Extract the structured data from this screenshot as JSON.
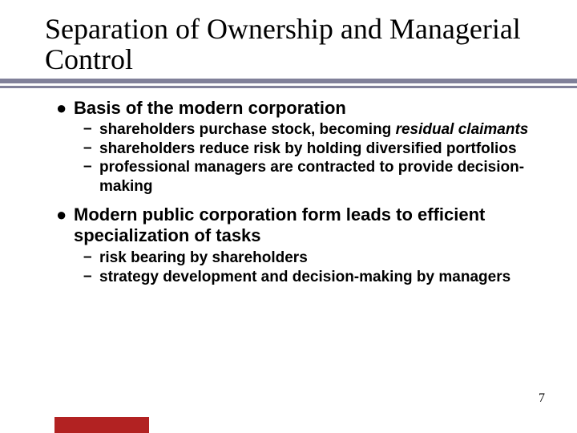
{
  "title_fontsize": 36,
  "bullet_fontsize": 22,
  "sub_fontsize": 19,
  "colors": {
    "underline": "#808099",
    "red_bar": "#b22222",
    "text": "#000000",
    "background": "#ffffff"
  },
  "title": "Separation of Ownership and Managerial Control",
  "page_number": "7",
  "bullets": [
    {
      "text": "Basis of the modern corporation",
      "subs": [
        {
          "prefix": "shareholders purchase stock, becoming ",
          "italic": "residual claimants"
        },
        {
          "prefix": "shareholders reduce risk by holding diversified portfolios",
          "italic": ""
        },
        {
          "prefix": "professional managers are contracted to provide decision-making",
          "italic": ""
        }
      ]
    },
    {
      "text": "Modern public corporation form leads to efficient specialization of tasks",
      "subs": [
        {
          "prefix": "risk bearing by shareholders",
          "italic": ""
        },
        {
          "prefix": "strategy development and decision-making by managers",
          "italic": ""
        }
      ]
    }
  ]
}
